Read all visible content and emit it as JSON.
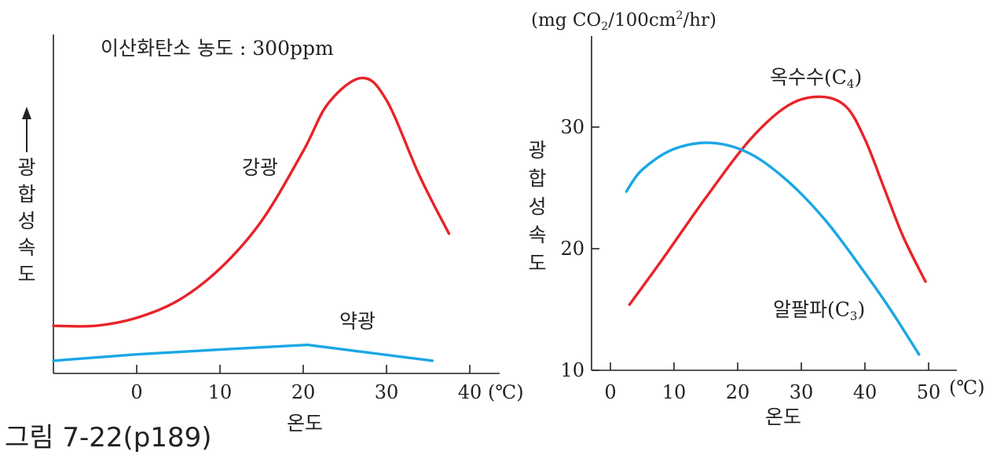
{
  "caption": "그림 7-22(p189)",
  "chart_data": [
    {
      "type": "line",
      "annotation": "이산화탄소 농도 : 300ppm",
      "xlabel": "온도",
      "ylabel": "광합성속도",
      "unit": "(℃)",
      "xlim": [
        -10,
        43
      ],
      "ylim": [
        0,
        100
      ],
      "xticks": [
        0,
        10,
        20,
        30,
        40
      ],
      "series": [
        {
          "name": "강광",
          "color": "#e8232a",
          "x": [
            -10,
            -5,
            0,
            5,
            10,
            15,
            20,
            23,
            27,
            30,
            34,
            37.5
          ],
          "y": [
            15,
            15,
            17.5,
            23,
            33,
            48,
            70,
            85,
            93,
            86,
            62,
            44
          ]
        },
        {
          "name": "약광",
          "color": "#1aa7e4",
          "x": [
            -10,
            0,
            10,
            20.5,
            35.5
          ],
          "y": [
            4,
            6,
            7.5,
            9,
            4
          ]
        }
      ]
    },
    {
      "type": "line",
      "unit_label": "(mg CO₂/100cm²/hr)",
      "xlabel": "온도",
      "ylabel": "광합성속도",
      "unit": "(℃)",
      "xlim": [
        -3,
        55
      ],
      "ylim": [
        10,
        37
      ],
      "xticks": [
        0,
        10,
        20,
        30,
        40,
        50
      ],
      "yticks": [
        10,
        20,
        30
      ],
      "series": [
        {
          "name": "옥수수",
          "subscript_label": "C4",
          "color": "#e8232a",
          "x": [
            3,
            8,
            15,
            22,
            28,
            33,
            37,
            40,
            43,
            46,
            49.5
          ],
          "y": [
            15.4,
            19,
            24.2,
            29,
            31.8,
            32.5,
            31.7,
            29,
            25,
            21,
            17.3
          ]
        },
        {
          "name": "알팔파",
          "subscript_label": "C3",
          "color": "#1aa7e4",
          "x": [
            2.5,
            5,
            10,
            16,
            22,
            28,
            34,
            40,
            44,
            48.5
          ],
          "y": [
            24.7,
            26.5,
            28.2,
            28.7,
            27.8,
            25.5,
            22.2,
            18,
            15,
            11.3
          ]
        }
      ]
    }
  ]
}
